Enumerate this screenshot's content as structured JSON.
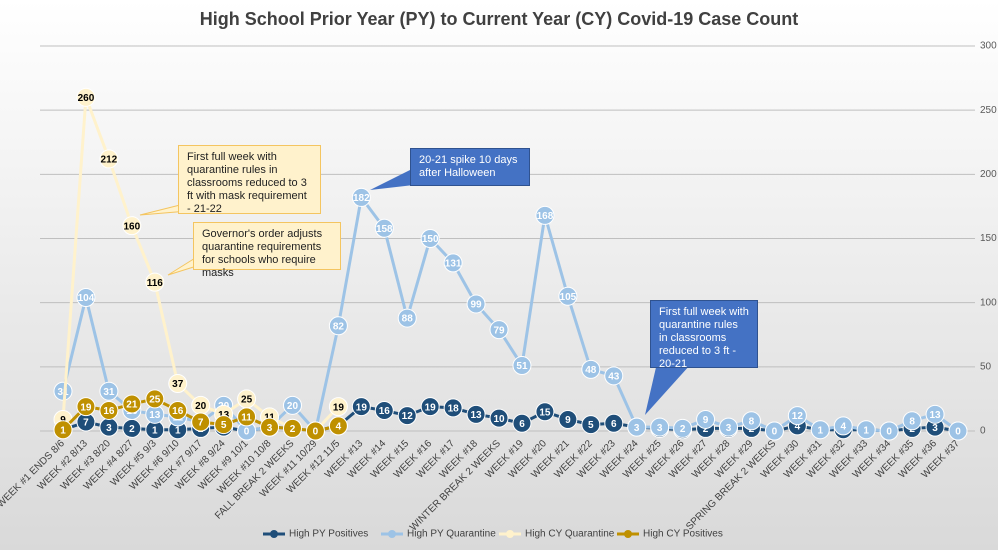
{
  "chart_data": {
    "type": "line",
    "title": "High School Prior Year (PY) to Current Year (CY) Covid-19 Case Count",
    "categories": [
      "WEEK #1 ENDS 8/6",
      "WEEK #2 8/13",
      "WEEK #3 8/20",
      "WEEK #4 8/27",
      "WEEK #5 9/3",
      "WEEK #6 9/10",
      "WEEK #7 9/17",
      "WEEK #8 9/24",
      "WEEK #9 10/1",
      "WEEK #10 10/8",
      "FALL BREAK 2 WEEKS",
      "WEEK #11 10/29",
      "WEEK #12 11/5",
      "WEEK #13",
      "WEEK #14",
      "WEEK #15",
      "WEEK #16",
      "WEEK #17",
      "WEEK #18",
      "WINTER BREAK 2 WEEKS",
      "WEEK #19",
      "WEEK #20",
      "WEEK #21",
      "WEEK #22",
      "WEEK #23",
      "WEEK #24",
      "WEEK #25",
      "WEEK #26",
      "WEEK #27",
      "WEEK #28",
      "WEEK #29",
      "SPRING BREAK 2 WEEKS",
      "WEEK #30",
      "WEEK #31",
      "WEEK #32",
      "WEEK #33",
      "WEEK #34",
      "WEEK #35",
      "WEEK #36",
      "WEEK #37"
    ],
    "series": [
      {
        "name": "High PY Positives",
        "color": "#1f4e79",
        "values": [
          1,
          7,
          3,
          2,
          1,
          1,
          2,
          3,
          0,
          3,
          2,
          0,
          4,
          19,
          16,
          12,
          19,
          18,
          13,
          10,
          6,
          15,
          9,
          5,
          6,
          3,
          2,
          1,
          2,
          2,
          2,
          0,
          4,
          1,
          1,
          1,
          0,
          2,
          3,
          0
        ]
      },
      {
        "name": "High PY Quarantine",
        "color": "#9dc3e6",
        "values": [
          31,
          104,
          31,
          16,
          13,
          11,
          7,
          20,
          0,
          3,
          20,
          0,
          82,
          182,
          158,
          88,
          150,
          131,
          99,
          79,
          51,
          168,
          105,
          48,
          43,
          3,
          3,
          2,
          9,
          3,
          8,
          0,
          12,
          1,
          4,
          1,
          0,
          8,
          13,
          0
        ]
      },
      {
        "name": "High CY Quarantine",
        "color": "#fff2cc",
        "values": [
          9,
          260,
          212,
          160,
          116,
          37,
          20,
          13,
          25,
          11,
          2,
          0,
          19,
          null,
          null,
          null,
          null,
          null,
          null,
          null,
          null,
          null,
          null,
          null,
          null,
          null,
          null,
          null,
          null,
          null,
          null,
          null,
          null,
          null,
          null,
          null,
          null,
          null,
          null,
          null
        ]
      },
      {
        "name": "High CY Positives",
        "color": "#bf9000",
        "values": [
          1,
          19,
          16,
          21,
          25,
          16,
          7,
          5,
          11,
          3,
          2,
          0,
          4,
          null,
          null,
          null,
          null,
          null,
          null,
          null,
          null,
          null,
          null,
          null,
          null,
          null,
          null,
          null,
          null,
          null,
          null,
          null,
          null,
          null,
          null,
          null,
          null,
          null,
          null,
          null
        ]
      }
    ],
    "ylim": [
      0,
      300
    ],
    "yticks": [
      0,
      50,
      100,
      150,
      200,
      250,
      300
    ],
    "grid": true,
    "legend": "bottom",
    "annotations": [
      {
        "text": "First full week with quarantine rules in classrooms reduced to 3 ft with mask requirement - 21-22"
      },
      {
        "text": "Governor's order adjusts quarantine requirements for schools who require masks"
      },
      {
        "text": "20-21 spike 10 days after Halloween"
      },
      {
        "text": "First full week with quarantine rules in classrooms reduced to 3 ft - 20-21"
      }
    ]
  }
}
